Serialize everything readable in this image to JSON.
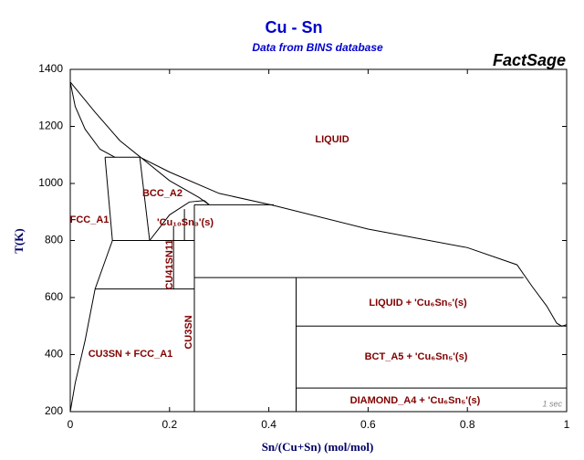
{
  "chart_data": {
    "type": "line",
    "title": "Cu - Sn",
    "subtitle": "Data from BINS database",
    "brand": "FactSage",
    "x_label": "Sn/(Cu+Sn) (mol/mol)",
    "y_label": "T(K)",
    "xlim": [
      0,
      1
    ],
    "ylim": [
      200,
      1400
    ],
    "xticks": [
      0,
      0.2,
      0.4,
      0.6,
      0.8,
      1
    ],
    "yticks": [
      200,
      400,
      600,
      800,
      1000,
      1200,
      1400
    ],
    "series": [
      {
        "color": "#000000",
        "x": [
          0,
          0.05,
          0.1,
          0.143,
          0.2,
          0.3,
          0.41,
          0.6,
          0.8,
          0.9,
          0.93,
          0.96,
          0.98,
          0.99,
          1
        ],
        "values": [
          1356,
          1250,
          1150,
          1090,
          1040,
          965,
          923,
          840,
          775,
          715,
          640,
          570,
          510,
          500,
          505
        ]
      },
      {
        "color": "#000000",
        "x": [
          0,
          0.01,
          0.03,
          0.06,
          0.09
        ],
        "values": [
          1356,
          1270,
          1190,
          1120,
          1092
        ]
      },
      {
        "color": "#000000",
        "x": [
          0.07,
          0.14
        ],
        "values": [
          1092,
          1092
        ]
      },
      {
        "color": "#000000",
        "x": [
          0.07,
          0.085
        ],
        "values": [
          1092,
          800
        ]
      },
      {
        "color": "#000000",
        "x": [
          0.14,
          0.16
        ],
        "values": [
          1092,
          800
        ]
      },
      {
        "color": "#000000",
        "x": [
          0.085,
          0.25
        ],
        "values": [
          800,
          800
        ]
      },
      {
        "color": "#000000",
        "x": [
          0.085,
          0.05,
          0.03,
          0.01,
          0
        ],
        "values": [
          800,
          630,
          450,
          300,
          200
        ]
      },
      {
        "color": "#000000",
        "x": [
          0.05,
          0.25
        ],
        "values": [
          630,
          630
        ]
      },
      {
        "color": "#000000",
        "x": [
          0.16,
          0.2,
          0.24,
          0.27,
          0.28
        ],
        "values": [
          800,
          890,
          935,
          940,
          925
        ]
      },
      {
        "color": "#000000",
        "x": [
          0.143,
          0.2,
          0.26,
          0.28
        ],
        "values": [
          1090,
          1010,
          950,
          925
        ]
      },
      {
        "color": "#000000",
        "x": [
          0.208,
          0.208
        ],
        "values": [
          630,
          850
        ]
      },
      {
        "color": "#000000",
        "x": [
          0.23,
          0.23
        ],
        "values": [
          800,
          910
        ]
      },
      {
        "color": "#000000",
        "x": [
          0.25,
          0.25
        ],
        "values": [
          200,
          925
        ]
      },
      {
        "color": "#000000",
        "x": [
          0.25,
          0.41
        ],
        "values": [
          925,
          925
        ]
      },
      {
        "color": "#000000",
        "x": [
          0.25,
          0.913
        ],
        "values": [
          670,
          670
        ]
      },
      {
        "color": "#000000",
        "x": [
          0.455,
          0.455
        ],
        "values": [
          200,
          670
        ]
      },
      {
        "color": "#000000",
        "x": [
          0.455,
          1
        ],
        "values": [
          500,
          500
        ]
      },
      {
        "color": "#000000",
        "x": [
          0.455,
          1
        ],
        "values": [
          283,
          283
        ]
      }
    ],
    "annotations": [
      "LIQUID",
      "BCC_A2",
      "FCC_A1",
      "'Cu₁₀Sn₃'(s)",
      "CU41SN11",
      "CU3SN",
      "LIQUID + 'Cu₆Sn₅'(s)",
      "BCT_A5 + 'Cu₆Sn₅'(s)",
      "DIAMOND_A4 + 'Cu₆Sn₅'(s)",
      "CU3SN + FCC_A1"
    ],
    "footnote": "1 sec"
  }
}
